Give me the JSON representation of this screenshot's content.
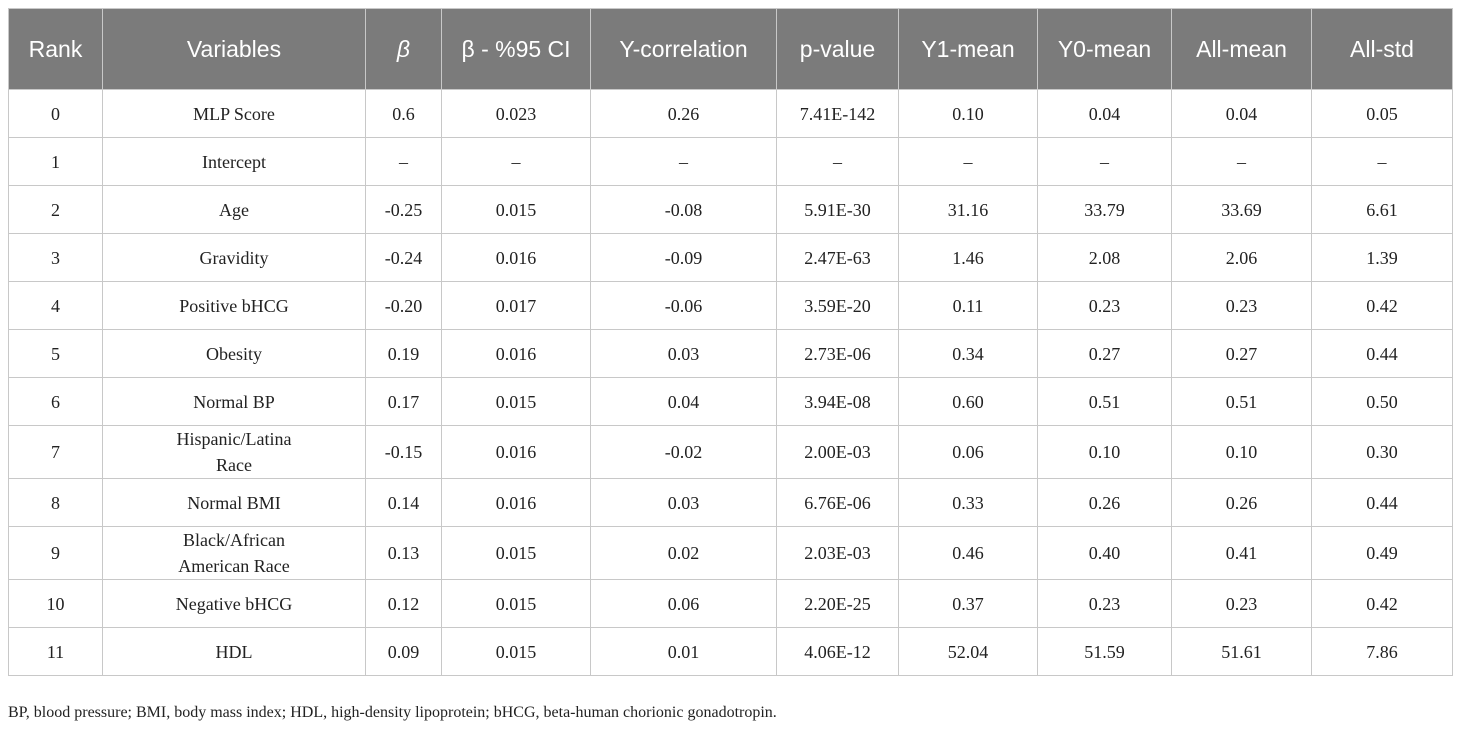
{
  "table": {
    "header": [
      "Rank",
      "Variables",
      "β",
      "β - %95 CI",
      "Y-correlation",
      "p-value",
      "Y1-mean",
      "Y0-mean",
      "All-mean",
      "All-std"
    ],
    "rows": [
      [
        "0",
        "MLP Score",
        "0.6",
        "0.023",
        "0.26",
        "7.41E-142",
        "0.10",
        "0.04",
        "0.04",
        "0.05"
      ],
      [
        "1",
        "Intercept",
        "–",
        "–",
        "–",
        "–",
        "–",
        "–",
        "–",
        "–"
      ],
      [
        "2",
        "Age",
        "-0.25",
        "0.015",
        "-0.08",
        "5.91E-30",
        "31.16",
        "33.79",
        "33.69",
        "6.61"
      ],
      [
        "3",
        "Gravidity",
        "-0.24",
        "0.016",
        "-0.09",
        "2.47E-63",
        "1.46",
        "2.08",
        "2.06",
        "1.39"
      ],
      [
        "4",
        "Positive bHCG",
        "-0.20",
        "0.017",
        "-0.06",
        "3.59E-20",
        "0.11",
        "0.23",
        "0.23",
        "0.42"
      ],
      [
        "5",
        "Obesity",
        "0.19",
        "0.016",
        "0.03",
        "2.73E-06",
        "0.34",
        "0.27",
        "0.27",
        "0.44"
      ],
      [
        "6",
        "Normal BP",
        "0.17",
        "0.015",
        "0.04",
        "3.94E-08",
        "0.60",
        "0.51",
        "0.51",
        "0.50"
      ],
      [
        "7",
        "Hispanic/Latina Race",
        "-0.15",
        "0.016",
        "-0.02",
        "2.00E-03",
        "0.06",
        "0.10",
        "0.10",
        "0.30"
      ],
      [
        "8",
        "Normal BMI",
        "0.14",
        "0.016",
        "0.03",
        "6.76E-06",
        "0.33",
        "0.26",
        "0.26",
        "0.44"
      ],
      [
        "9",
        "Black/African American Race",
        "0.13",
        "0.015",
        "0.02",
        "2.03E-03",
        "0.46",
        "0.40",
        "0.41",
        "0.49"
      ],
      [
        "10",
        "Negative bHCG",
        "0.12",
        "0.015",
        "0.06",
        "2.20E-25",
        "0.37",
        "0.23",
        "0.23",
        "0.42"
      ],
      [
        "11",
        "HDL",
        "0.09",
        "0.015",
        "0.01",
        "4.06E-12",
        "52.04",
        "51.59",
        "51.61",
        "7.86"
      ]
    ]
  },
  "footnote": "BP, blood pressure; BMI, body mass index; HDL, high-density lipoprotein; bHCG, beta-human chorionic gonadotropin."
}
